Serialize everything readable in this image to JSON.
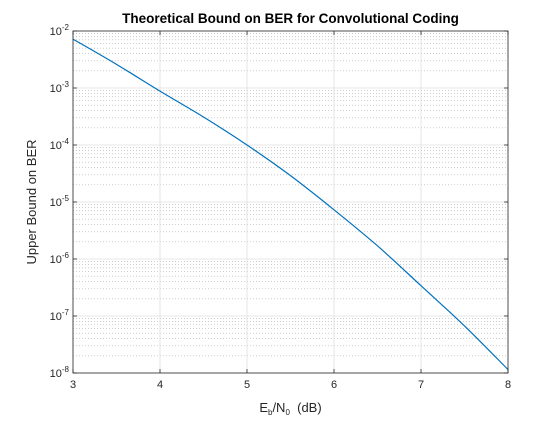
{
  "chart_data": {
    "type": "line",
    "title": "Theoretical Bound on BER for Convolutional Coding",
    "xlabel_parts": [
      "E",
      "b",
      "/N",
      "0",
      "  (dB)"
    ],
    "ylabel": "Upper Bound on BER",
    "xlim": [
      3,
      8
    ],
    "ylim": [
      1e-08,
      0.01
    ],
    "yscale": "log",
    "grid": true,
    "minor_grid": true,
    "x_ticks": [
      3,
      4,
      5,
      6,
      7,
      8
    ],
    "x_tick_labels": [
      "3",
      "4",
      "5",
      "6",
      "7",
      "8"
    ],
    "y_ticks": [
      {
        "value": 1e-08,
        "base": "10",
        "exp": "-8"
      },
      {
        "value": 1e-07,
        "base": "10",
        "exp": "-7"
      },
      {
        "value": 1e-06,
        "base": "10",
        "exp": "-6"
      },
      {
        "value": 1e-05,
        "base": "10",
        "exp": "-5"
      },
      {
        "value": 0.0001,
        "base": "10",
        "exp": "-4"
      },
      {
        "value": 0.001,
        "base": "10",
        "exp": "-3"
      },
      {
        "value": 0.01,
        "base": "10",
        "exp": "-2"
      }
    ],
    "line_color": "#0072bd",
    "series": [
      {
        "x": [
          3,
          3.5,
          4,
          4.5,
          5,
          5.5,
          6,
          6.5,
          7,
          7.5,
          8
        ],
        "y": [
          0.0072,
          0.0026,
          0.00088,
          0.00031,
          0.0001,
          2.9e-05,
          7.3e-06,
          1.7e-06,
          3.4e-07,
          6.7e-08,
          1.15e-08
        ]
      }
    ]
  }
}
